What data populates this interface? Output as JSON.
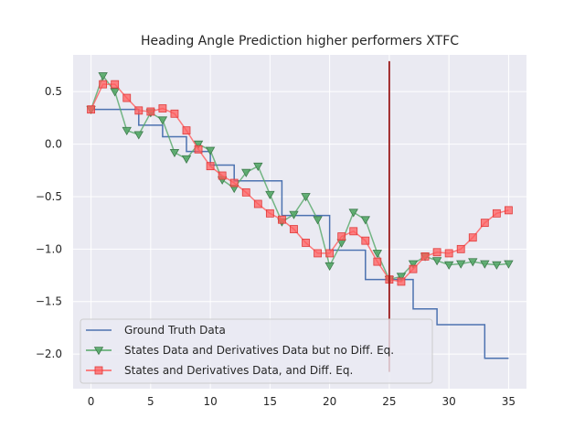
{
  "chart_data": {
    "type": "line",
    "title": "Heading Angle Prediction higher performers XTFC",
    "xlabel": "",
    "ylabel": "",
    "xlim": [
      -1.5,
      36.5
    ],
    "ylim": [
      -2.33,
      0.85
    ],
    "x_ticks": [
      0,
      5,
      10,
      15,
      20,
      25,
      30,
      35
    ],
    "x_tick_labels": [
      "0",
      "5",
      "10",
      "15",
      "20",
      "25",
      "30",
      "35"
    ],
    "y_ticks": [
      0.5,
      0.0,
      -0.5,
      -1.0,
      -1.5,
      -2.0
    ],
    "y_tick_labels": [
      "0.5",
      "0.0",
      "−0.5",
      "−1.0",
      "−1.5",
      "−2.0"
    ],
    "grid": true,
    "legend_position": "lower-left",
    "vline": {
      "x": 25,
      "ymin": -2.17,
      "ymax": 0.79,
      "color": "#9b1b1b"
    },
    "series": [
      {
        "name": "Ground Truth Data",
        "style": "step",
        "color": "#4c72b0",
        "marker": "none",
        "x": [
          0,
          1,
          2,
          3,
          4,
          5,
          6,
          7,
          8,
          9,
          10,
          11,
          12,
          13,
          14,
          15,
          16,
          17,
          18,
          19,
          20,
          21,
          22,
          23,
          24,
          25,
          26,
          27,
          28,
          29,
          30,
          31,
          32,
          33,
          34,
          35
        ],
        "y": [
          0.33,
          0.33,
          0.33,
          0.33,
          0.18,
          0.18,
          0.07,
          0.07,
          -0.07,
          -0.07,
          -0.2,
          -0.2,
          -0.35,
          -0.35,
          -0.35,
          -0.35,
          -0.68,
          -0.68,
          -0.68,
          -0.68,
          -1.01,
          -1.01,
          -1.01,
          -1.29,
          -1.29,
          -1.29,
          -1.29,
          -1.57,
          -1.57,
          -1.72,
          -1.72,
          -1.72,
          -1.72,
          -2.04,
          -2.04,
          -2.04
        ]
      },
      {
        "name": "States Data and Derivatives Data but no Diff. Eq.",
        "style": "line",
        "color": "#55a868",
        "marker": "triangle-down",
        "x": [
          0,
          1,
          2,
          3,
          4,
          5,
          6,
          7,
          8,
          9,
          10,
          11,
          12,
          13,
          14,
          15,
          16,
          17,
          18,
          19,
          20,
          21,
          22,
          23,
          24,
          25,
          26,
          27,
          28,
          29,
          30,
          31,
          32,
          33,
          34,
          35
        ],
        "y": [
          0.33,
          0.65,
          0.5,
          0.13,
          0.09,
          0.3,
          0.23,
          -0.08,
          -0.14,
          0.0,
          -0.06,
          -0.34,
          -0.42,
          -0.27,
          -0.21,
          -0.48,
          -0.74,
          -0.67,
          -0.5,
          -0.72,
          -1.16,
          -0.94,
          -0.65,
          -0.72,
          -1.04,
          -1.29,
          -1.26,
          -1.14,
          -1.07,
          -1.11,
          -1.15,
          -1.14,
          -1.12,
          -1.14,
          -1.15,
          -1.14
        ]
      },
      {
        "name": "States and Derivatives Data, and Diff. Eq.",
        "style": "line",
        "color": "#ff5c5c",
        "marker": "square",
        "x": [
          0,
          1,
          2,
          3,
          4,
          5,
          6,
          7,
          8,
          9,
          10,
          11,
          12,
          13,
          14,
          15,
          16,
          17,
          18,
          19,
          20,
          21,
          22,
          23,
          24,
          25,
          26,
          27,
          28,
          29,
          30,
          31,
          32,
          33,
          34,
          35
        ],
        "y": [
          0.33,
          0.57,
          0.57,
          0.44,
          0.32,
          0.31,
          0.34,
          0.29,
          0.13,
          -0.05,
          -0.21,
          -0.3,
          -0.37,
          -0.46,
          -0.57,
          -0.66,
          -0.72,
          -0.81,
          -0.94,
          -1.04,
          -1.04,
          -0.88,
          -0.83,
          -0.92,
          -1.12,
          -1.29,
          -1.31,
          -1.19,
          -1.07,
          -1.03,
          -1.04,
          -1.0,
          -0.89,
          -0.75,
          -0.66,
          -0.63
        ]
      }
    ]
  }
}
